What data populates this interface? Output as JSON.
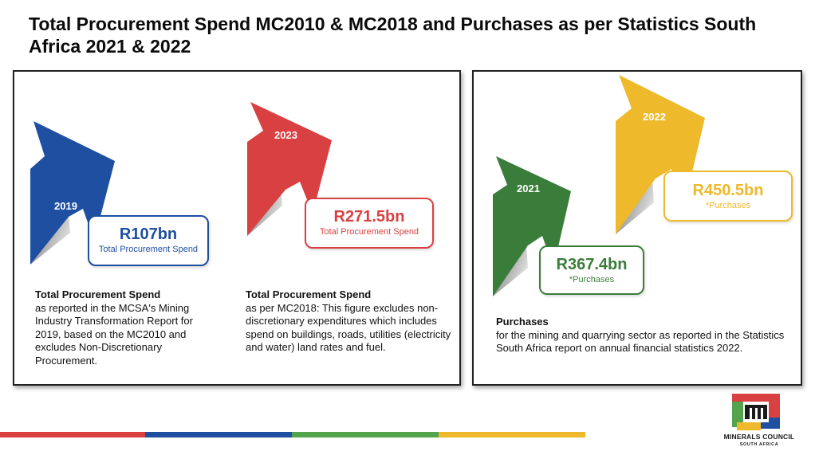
{
  "title": "Total Procurement Spend MC2010 & MC2018 and Purchases as per Statistics South Africa 2021 & 2022",
  "colors": {
    "blue": "#1f4fa0",
    "red": "#d94041",
    "green": "#3a7d3b",
    "yellow": "#eeb92a"
  },
  "left_panel": {
    "items": [
      {
        "year": "2019",
        "amount": "R107bn",
        "caption": "Total Procurement Spend",
        "desc_title": "Total Procurement Spend",
        "desc_body": "as reported in the MCSA's Mining Industry Transformation Report for 2019, based on the MC2010 and excludes Non-Discretionary Procurement."
      },
      {
        "year": "2023",
        "amount": "R271.5bn",
        "caption": "Total Procurement Spend",
        "desc_title": "Total Procurement Spend",
        "desc_body": "as per MC2018: This figure excludes non-discretionary expenditures which includes spend on buildings, roads, utilities (electricity and water) land rates and fuel."
      }
    ]
  },
  "right_panel": {
    "items": [
      {
        "year": "2021",
        "amount": "R367.4bn",
        "caption": "*Purchases"
      },
      {
        "year": "2022",
        "amount": "R450.5bn",
        "caption": "*Purchases"
      }
    ],
    "desc_title": "Purchases",
    "desc_body": "for the mining and quarrying sector as reported in the Statistics South Africa report on annual financial statistics 2022."
  },
  "logo": {
    "name": "MINERALS COUNCIL",
    "sub": "SOUTH AFRICA"
  }
}
